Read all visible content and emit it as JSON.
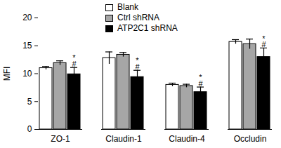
{
  "chart_data": {
    "type": "bar",
    "y_label": "MFI",
    "categories": [
      "ZO-1",
      "Claudin-1",
      "Claudin-4",
      "Occludin"
    ],
    "series": [
      {
        "name": "Blank",
        "color": "#ffffff",
        "values": [
          11.0,
          12.8,
          8.0,
          15.7
        ],
        "errors": [
          0.3,
          1.1,
          0.3,
          0.4
        ]
      },
      {
        "name": "Ctrl shRNA",
        "color": "#a6a6a6",
        "values": [
          11.9,
          13.4,
          7.8,
          15.3
        ],
        "errors": [
          0.4,
          0.4,
          0.3,
          0.9
        ]
      },
      {
        "name": "ATP2C1 shRNA",
        "color": "#000000",
        "values": [
          9.9,
          9.4,
          6.7,
          13.0
        ],
        "errors": [
          1.2,
          1.2,
          0.9,
          1.6
        ],
        "significance_marks": [
          [
            "*",
            "#"
          ],
          [
            "*",
            "#"
          ],
          [
            "*",
            "#"
          ],
          [
            "*",
            "#"
          ]
        ]
      }
    ],
    "ylim": [
      0,
      20
    ],
    "yticks": [
      0,
      5,
      10,
      15,
      20
    ],
    "grid": false,
    "legend": "top"
  }
}
